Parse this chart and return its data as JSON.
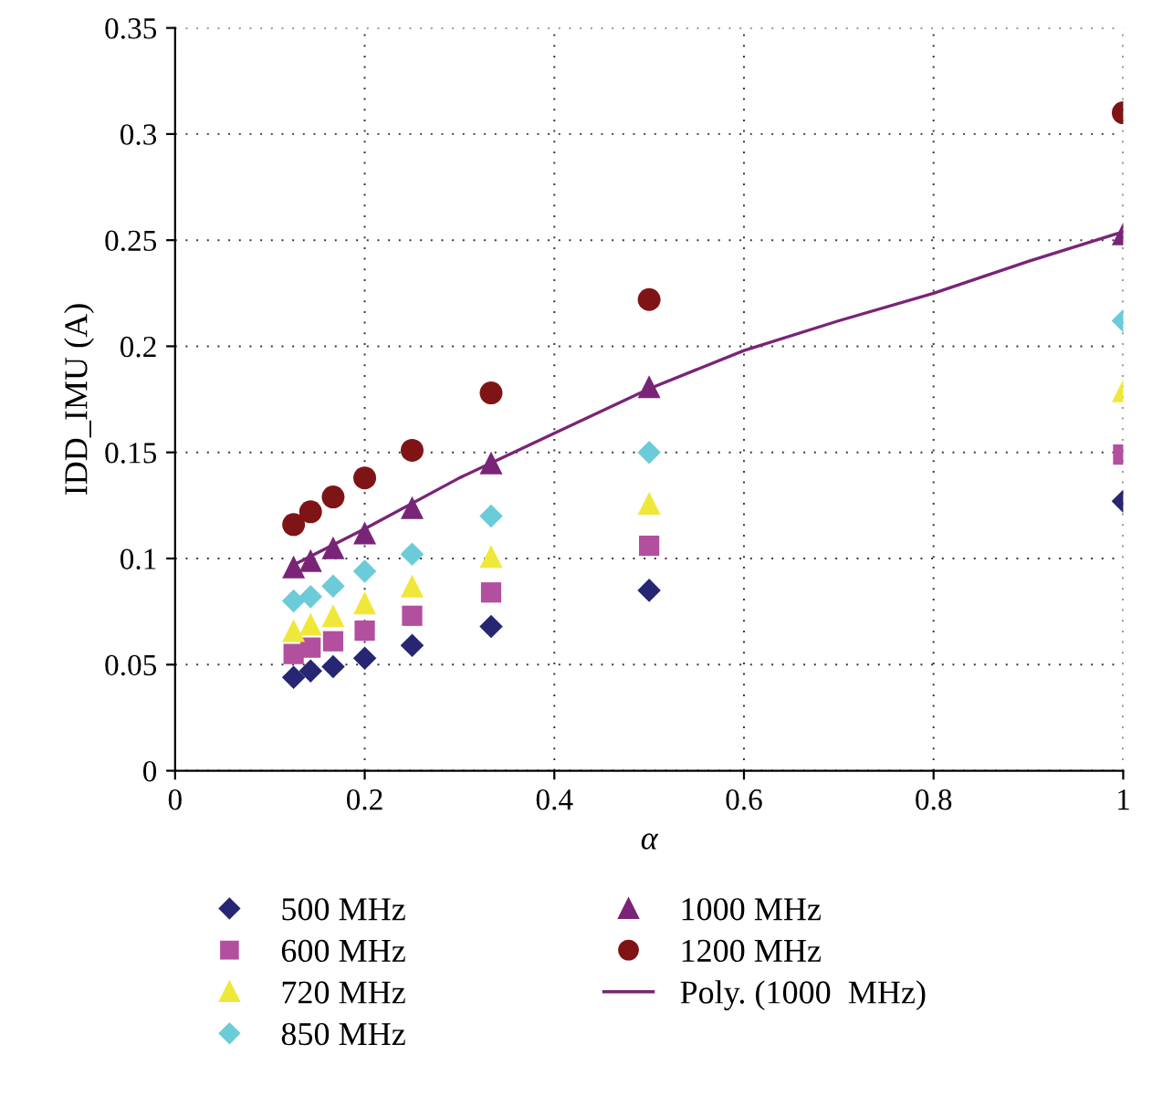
{
  "chart_data": {
    "type": "scatter",
    "xlabel": "α",
    "ylabel": "IDD_IMU (A)",
    "x": [
      0.125,
      0.1429,
      0.1667,
      0.2,
      0.25,
      0.3333,
      0.5,
      1
    ],
    "series": [
      {
        "name": "500 MHz",
        "color": "#262673",
        "marker": "diamond",
        "values": [
          0.044,
          0.047,
          0.049,
          0.053,
          0.059,
          0.068,
          0.085,
          0.127
        ]
      },
      {
        "name": "600 MHz",
        "color": "#b34f9f",
        "marker": "square",
        "values": [
          0.055,
          0.058,
          0.061,
          0.066,
          0.073,
          0.084,
          0.106,
          0.149
        ]
      },
      {
        "name": "720 MHz",
        "color": "#efe83a",
        "marker": "triangle",
        "values": [
          0.066,
          0.069,
          0.073,
          0.079,
          0.087,
          0.101,
          0.126,
          0.179
        ]
      },
      {
        "name": "850 MHz",
        "color": "#6ccbd8",
        "marker": "diamond",
        "values": [
          0.08,
          0.082,
          0.087,
          0.094,
          0.102,
          0.12,
          0.15,
          0.212
        ]
      },
      {
        "name": "1000 MHz",
        "color": "#7a2477",
        "marker": "triangle",
        "values": [
          0.096,
          0.099,
          0.105,
          0.112,
          0.124,
          0.145,
          0.181,
          0.253
        ]
      },
      {
        "name": "1200 MHz",
        "color": "#7f1416",
        "marker": "circle",
        "values": [
          0.116,
          0.122,
          0.129,
          0.138,
          0.151,
          0.178,
          0.222,
          0.31
        ]
      },
      {
        "name": "Poly. (1000  MHz)",
        "type": "line",
        "color": "#7a2477",
        "marker": "none",
        "line_style": "solid",
        "x": [
          0.125,
          0.2,
          0.3,
          0.4,
          0.5,
          0.6,
          0.7,
          0.8,
          0.9,
          1
        ],
        "values": [
          0.097,
          0.114,
          0.138,
          0.159,
          0.18,
          0.198,
          0.212,
          0.225,
          0.24,
          0.254
        ]
      }
    ],
    "xlim": [
      0,
      1
    ],
    "xticks": [
      0,
      0.2,
      0.4,
      0.6,
      0.8,
      1
    ],
    "ylim": [
      0,
      0.35
    ],
    "yticks": [
      0,
      0.05,
      0.1,
      0.15,
      0.2,
      0.25,
      0.3,
      0.35
    ],
    "grid": true,
    "legend": "bottom"
  }
}
